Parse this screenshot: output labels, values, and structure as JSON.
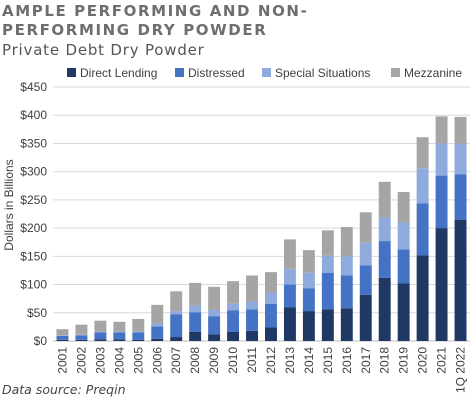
{
  "title": "AMPLE PERFORMING AND NON-PERFORMING DRY POWDER",
  "subtitle": "Private Debt Dry Powder",
  "source": "Data source: Preqin",
  "chart_data": {
    "type": "bar",
    "stacked": true,
    "ylabel": "Dollars in Billions",
    "ylim": [
      0,
      450
    ],
    "yticks": [
      0,
      50,
      100,
      150,
      200,
      250,
      300,
      350,
      400,
      450
    ],
    "ytick_labels": [
      "$0",
      "$50",
      "$100",
      "$150",
      "$200",
      "$250",
      "$300",
      "$350",
      "$400",
      "$450"
    ],
    "grid": true,
    "legend_position": "top",
    "categories": [
      "2001",
      "2002",
      "2003",
      "2004",
      "2005",
      "2006",
      "2007",
      "2008",
      "2009",
      "2010",
      "2011",
      "2012",
      "2013",
      "2014",
      "2015",
      "2016",
      "2017",
      "2018",
      "2019",
      "2020",
      "2021",
      "1Q 2022"
    ],
    "series": [
      {
        "name": "Direct Lending",
        "color": "#1f3864",
        "values": [
          2,
          2,
          3,
          3,
          2,
          4,
          7,
          16,
          12,
          16,
          18,
          24,
          60,
          53,
          56,
          58,
          82,
          112,
          102,
          152,
          200,
          215
        ]
      },
      {
        "name": "Distressed",
        "color": "#4472c4",
        "values": [
          7,
          8,
          12,
          12,
          13,
          22,
          40,
          35,
          32,
          38,
          38,
          42,
          40,
          40,
          65,
          58,
          52,
          65,
          60,
          92,
          93,
          80
        ]
      },
      {
        "name": "Special Situations",
        "color": "#8faadc",
        "values": [
          1,
          1,
          2,
          2,
          2,
          5,
          6,
          12,
          11,
          12,
          14,
          20,
          28,
          28,
          30,
          34,
          40,
          42,
          48,
          62,
          57,
          55
        ]
      },
      {
        "name": "Mezzanine",
        "color": "#a5a5a5",
        "values": [
          11,
          18,
          19,
          17,
          22,
          33,
          35,
          40,
          41,
          40,
          46,
          36,
          52,
          40,
          45,
          52,
          54,
          63,
          54,
          55,
          48,
          47
        ]
      }
    ]
  }
}
